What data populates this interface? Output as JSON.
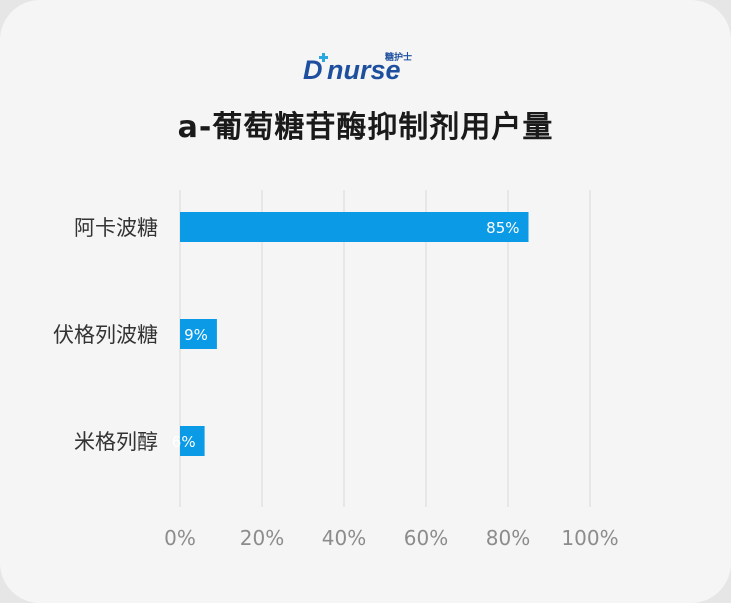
{
  "brand": {
    "logo_text_main": "D",
    "logo_text_tail": "nurse",
    "logo_small": "糖护士",
    "logo_color": "#1e4f9e",
    "logo_accent": "#29a8e0"
  },
  "title": "a-葡萄糖苷酶抑制剂用户量",
  "chart_data": {
    "type": "bar",
    "orientation": "horizontal",
    "title": "a-葡萄糖苷酶抑制剂用户量",
    "categories": [
      "阿卡波糖",
      "伏格列波糖",
      "米格列醇"
    ],
    "values": [
      85,
      9,
      6
    ],
    "data_labels": [
      "85%",
      "9%",
      "6%"
    ],
    "xlim": [
      0,
      100
    ],
    "x_ticks": [
      0,
      20,
      40,
      60,
      80,
      100
    ],
    "x_tick_labels": [
      "0%",
      "20%",
      "40%",
      "60%",
      "80%",
      "100%"
    ],
    "grid": "vertical",
    "bar_color": "#0a9ae6",
    "grid_color": "#d9d9d9",
    "tick_color": "#8c8c8c",
    "label_color": "#333333"
  }
}
